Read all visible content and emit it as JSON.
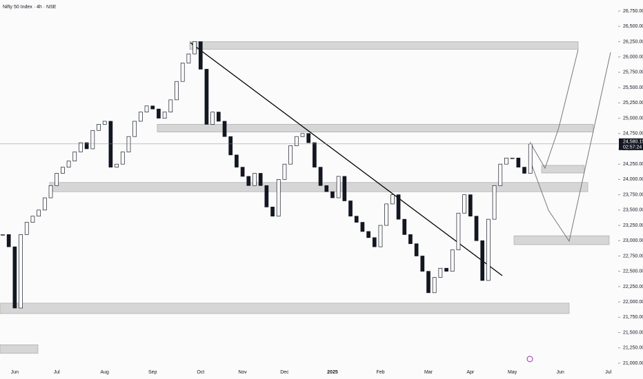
{
  "chart_data": {
    "type": "candlestick",
    "title": "Nifty 50 Index · 4h · NSE",
    "categories": [
      null,
      null,
      "Jun",
      null,
      null,
      null,
      null,
      null,
      null,
      "Jul",
      null,
      null,
      null,
      null,
      null,
      null,
      null,
      "Aug",
      null,
      null,
      null,
      null,
      null,
      null,
      null,
      "Sep",
      null,
      null,
      null,
      null,
      null,
      null,
      null,
      "Oct",
      null,
      null,
      null,
      null,
      null,
      null,
      "Nov",
      null,
      null,
      null,
      null,
      null,
      null,
      "Dec",
      null,
      null,
      null,
      null,
      null,
      null,
      null,
      "2025",
      null,
      null,
      null,
      null,
      null,
      null,
      null,
      "Feb",
      null,
      null,
      null,
      null,
      null,
      null,
      null,
      "Mar",
      null,
      null,
      null,
      null,
      null,
      null,
      "Apr",
      null,
      null,
      null,
      null,
      null,
      null,
      "May",
      null,
      null,
      null,
      null,
      null,
      null,
      null,
      "Jun",
      null,
      null,
      null,
      null,
      null,
      null,
      null,
      "Jul",
      null
    ],
    "values": [
      23100,
      22900,
      21900,
      23100,
      23300,
      23400,
      23500,
      23700,
      23900,
      24100,
      24200,
      24300,
      24450,
      24600,
      24500,
      24800,
      24900,
      24950,
      24200,
      24250,
      24450,
      24700,
      24950,
      25100,
      25200,
      25150,
      25000,
      25100,
      25300,
      25600,
      25900,
      26050,
      26250,
      25800,
      24900,
      25100,
      24950,
      24700,
      24400,
      24200,
      24050,
      23900,
      24100,
      23900,
      23550,
      23400,
      24000,
      24250,
      24550,
      24700,
      24750,
      24600,
      24200,
      23900,
      23800,
      23700,
      24050,
      23650,
      23400,
      23300,
      23150,
      23050,
      22900,
      23250,
      23600,
      23750,
      23350,
      23100,
      22950,
      22750,
      22500,
      22150,
      22400,
      22550,
      22500,
      22850,
      23450,
      23750,
      23400,
      23000,
      22350,
      23350,
      23900,
      24250,
      24350,
      24350,
      24200,
      24100,
      24580.15,
      null,
      null,
      null,
      null,
      null,
      null,
      null,
      null,
      null,
      null,
      null,
      null,
      null,
      null
    ],
    "up_color": "#ffffff",
    "down_color": "#131722",
    "zones": [
      {
        "low": 26125,
        "high": 26250
      },
      {
        "low": 24775,
        "high": 24900
      },
      {
        "low": 24105,
        "high": 24230
      },
      {
        "low": 23800,
        "high": 23950
      },
      {
        "low": 22935,
        "high": 23080
      },
      {
        "low": 21810,
        "high": 21980
      },
      {
        "low": 21160,
        "high": 21300
      }
    ],
    "price_label": {
      "value": 24580.15,
      "label": "24,580.15"
    },
    "countdown": "02:57:24",
    "ylim": [
      21000,
      26750
    ],
    "yticks": [
      {
        "value": 21000,
        "label": "21,000.00"
      },
      {
        "value": 21250,
        "label": "21,250.00"
      },
      {
        "value": 21500,
        "label": "21,500.00"
      },
      {
        "value": 21750,
        "label": "21,750.00"
      },
      {
        "value": 22000,
        "label": "22,000.00"
      },
      {
        "value": 22250,
        "label": "22,250.00"
      },
      {
        "value": 22500,
        "label": "22,500.00"
      },
      {
        "value": 22750,
        "label": "22,750.00"
      },
      {
        "value": 23000,
        "label": "23,000.00"
      },
      {
        "value": 23250,
        "label": "23,250.00"
      },
      {
        "value": 23500,
        "label": "23,500.00"
      },
      {
        "value": 23750,
        "label": "23,750.00"
      },
      {
        "value": 24000,
        "label": "24,000.00"
      },
      {
        "value": 24250,
        "label": "24,250.00"
      },
      {
        "value": 24500,
        "label": "24,500.00"
      },
      {
        "value": 24750,
        "label": "24,750.00"
      },
      {
        "value": 25000,
        "label": "25,000.00"
      },
      {
        "value": 25250,
        "label": "25,250.00"
      },
      {
        "value": 25500,
        "label": "25,500.00"
      },
      {
        "value": 25750,
        "label": "25,750.00"
      },
      {
        "value": 26000,
        "label": "26,000.00"
      },
      {
        "value": 26250,
        "label": "26,250.00"
      },
      {
        "value": 26500,
        "label": "26,500.00"
      },
      {
        "value": 26750,
        "label": "26,750.00"
      }
    ]
  }
}
